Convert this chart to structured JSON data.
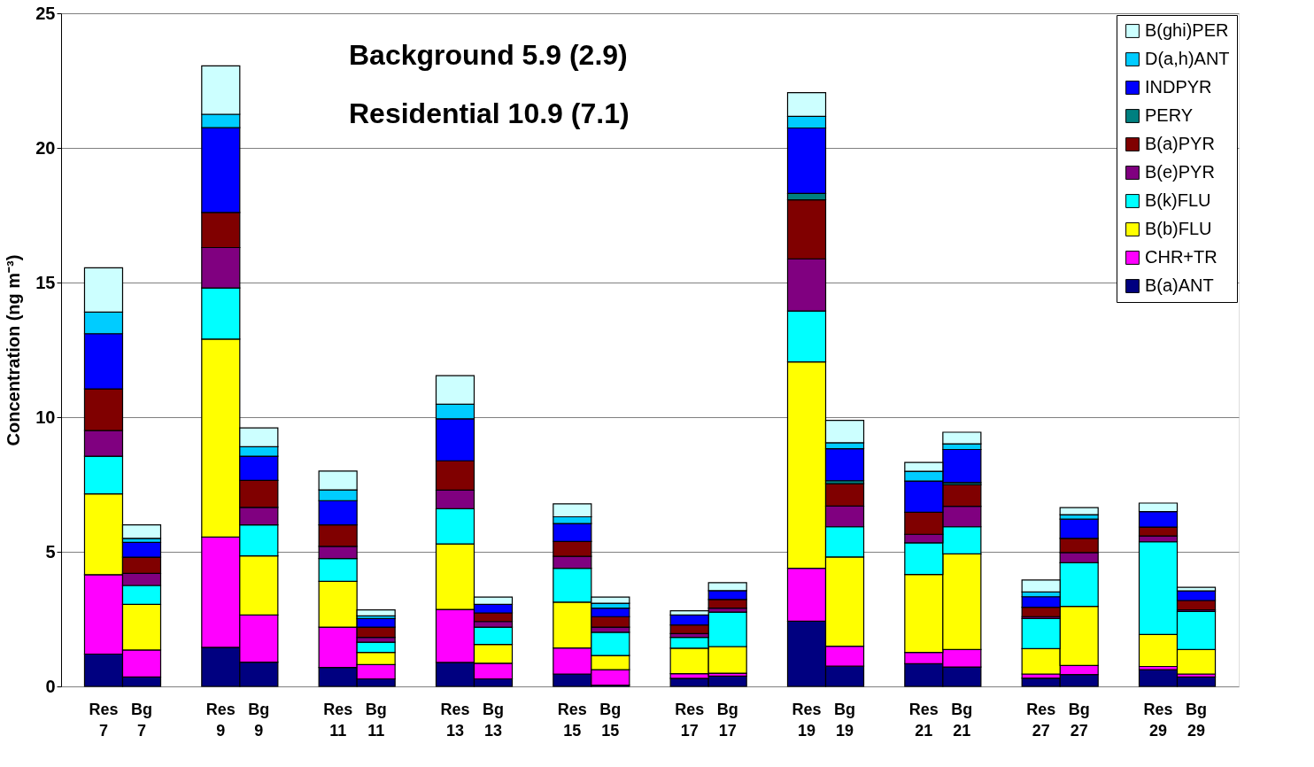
{
  "chart_data": {
    "type": "bar",
    "stacked": true,
    "ylabel": "Concentration (ng m⁻³)",
    "categories": [
      "Res 7",
      "Bg 7",
      "Res 9",
      "Bg 9",
      "Res 11",
      "Bg 11",
      "Res 13",
      "Bg 13",
      "Res 15",
      "Bg 15",
      "Res 17",
      "Bg 17",
      "Res 19",
      "Bg 19",
      "Res 21",
      "Bg 21",
      "Res 27",
      "Bg 27",
      "Res 29",
      "Bg 29"
    ],
    "series": [
      {
        "name": "B(a)ANT",
        "color": "#000080",
        "values": [
          1.2,
          0.35,
          1.45,
          0.9,
          0.7,
          0.28,
          0.89,
          0.28,
          0.46,
          0.05,
          0.3,
          0.38,
          2.42,
          0.75,
          0.84,
          0.72,
          0.31,
          0.44,
          0.62,
          0.35
        ]
      },
      {
        "name": "CHR+TR",
        "color": "#ff00ff",
        "values": [
          2.95,
          1.0,
          4.1,
          1.75,
          1.5,
          0.53,
          1.97,
          0.58,
          0.97,
          0.57,
          0.17,
          0.11,
          1.97,
          0.74,
          0.42,
          0.65,
          0.15,
          0.34,
          0.12,
          0.11
        ]
      },
      {
        "name": "B(b)FLU",
        "color": "#ffff00",
        "values": [
          3.0,
          1.7,
          7.35,
          2.2,
          1.7,
          0.45,
          2.43,
          0.7,
          1.7,
          0.53,
          0.95,
          0.99,
          7.66,
          3.32,
          2.9,
          3.55,
          0.94,
          2.19,
          1.19,
          0.91
        ]
      },
      {
        "name": "B(k)FLU",
        "color": "#00ffff",
        "values": [
          1.4,
          0.7,
          1.9,
          1.15,
          0.85,
          0.38,
          1.31,
          0.64,
          1.26,
          0.86,
          0.4,
          1.28,
          1.89,
          1.12,
          1.17,
          1.01,
          1.12,
          1.62,
          3.44,
          1.41
        ]
      },
      {
        "name": "B(e)PYR",
        "color": "#800080",
        "values": [
          0.95,
          0.45,
          1.5,
          0.65,
          0.45,
          0.18,
          0.69,
          0.21,
          0.44,
          0.19,
          0.14,
          0.15,
          1.94,
          0.77,
          0.32,
          0.76,
          0.07,
          0.38,
          0.22,
          0.06
        ]
      },
      {
        "name": "B(a)PYR",
        "color": "#800000",
        "values": [
          1.55,
          0.6,
          1.3,
          1.0,
          0.8,
          0.38,
          1.09,
          0.32,
          0.55,
          0.39,
          0.32,
          0.32,
          2.19,
          0.83,
          0.82,
          0.8,
          0.35,
          0.53,
          0.33,
          0.35
        ]
      },
      {
        "name": "PERY",
        "color": "#008080",
        "values": [
          null,
          null,
          null,
          null,
          null,
          null,
          null,
          null,
          null,
          null,
          null,
          null,
          0.24,
          0.11,
          null,
          0.08,
          null,
          null,
          null,
          null
        ]
      },
      {
        "name": "INDPYR",
        "color": "#0000ff",
        "values": [
          2.05,
          0.55,
          3.15,
          0.9,
          0.9,
          0.32,
          1.56,
          0.32,
          0.67,
          0.32,
          0.37,
          0.33,
          2.43,
          1.19,
          1.16,
          1.23,
          0.39,
          0.71,
          0.57,
          0.36
        ]
      },
      {
        "name": "D(a,h)ANT",
        "color": "#00ccff",
        "values": [
          0.8,
          0.15,
          0.5,
          0.35,
          0.4,
          0.1,
          0.54,
          null,
          0.25,
          0.18,
          null,
          null,
          0.43,
          0.22,
          0.36,
          0.21,
          0.18,
          0.17,
          null,
          null
        ]
      },
      {
        "name": "B(ghi)PER",
        "color": "#ccffff",
        "values": [
          1.65,
          0.5,
          1.8,
          0.7,
          0.7,
          0.22,
          1.06,
          0.27,
          0.48,
          0.23,
          0.16,
          0.29,
          0.88,
          0.83,
          0.33,
          0.43,
          0.44,
          0.26,
          0.32,
          0.13
        ]
      }
    ],
    "ylim": [
      0,
      25
    ],
    "yticks": [
      0,
      5,
      10,
      15,
      20,
      25
    ],
    "grid": "y",
    "legend": "top right",
    "annotations": [
      "Background 5.9 (2.9)",
      "Residential 10.9 (7.1)"
    ]
  }
}
